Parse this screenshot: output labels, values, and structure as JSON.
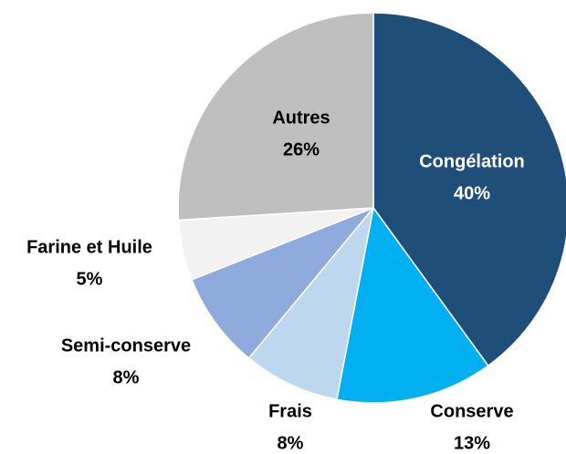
{
  "chart_data": {
    "type": "pie",
    "categories": [
      "Congélation",
      "Conserve",
      "Frais",
      "Semi-conserve",
      "Farine et Huile",
      "Autres"
    ],
    "values": [
      40,
      13,
      8,
      8,
      5,
      26
    ],
    "value_labels": [
      "40%",
      "13%",
      "8%",
      "8%",
      "5%",
      "26%"
    ],
    "colors": [
      "#1f4e79",
      "#00b0f0",
      "#bdd7ee",
      "#8faadc",
      "#f2f2f2",
      "#bfbfbf"
    ]
  }
}
